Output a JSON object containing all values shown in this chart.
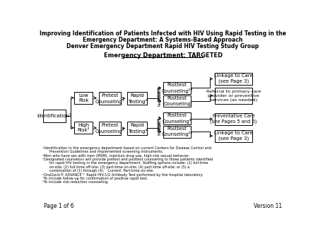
{
  "title1": "Improving Identification of Patients Infected with HIV Using Rapid Testing in the",
  "title2": "Emergency Department: A Systems-Based Approach",
  "title3": "Denver Emergency Department Rapid HIV Testing Study Group",
  "title4": "Emergency Department: TARGETED",
  "bg_color": "#ffffff",
  "footnotes": [
    "¹Identification in the emergency department based on current Centers for Disease Control and",
    "      Prevention Guidelines and implemented screening instruments.",
    "²Men who have sex with men (MSM), injection drug use, high-risk sexual behavior.",
    "³Designated counselors will provide pretest and posttest counseling to those patients identified",
    "      for rapid HIV testing in the emergency department. Staffing options include: (1) full-time",
    "      on-site; (2) full-time off-site; (3) part-time on-site; (4) part-time off-site; or (5) a",
    "      combination of (1) through (4).   Current: Part-time on-site.",
    "⁴OraQuick® ADVANCE™ Rapid HIV-1/2 Antibody Test performed by the hospital laboratory.",
    "⁵To include follow-up for confirmation of positive rapid test.",
    "⁶To include risk-reduction counseling."
  ],
  "page_label": "Page 1 of 6",
  "version_label": "Version 11"
}
